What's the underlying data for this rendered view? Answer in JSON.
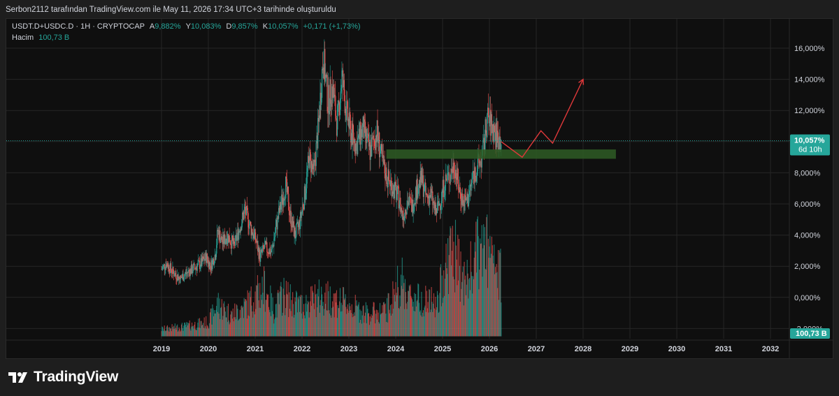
{
  "header": {
    "caption": "Serbon2112 tarafından TradingView.com ile May 11, 2026 17:34 UTC+3 tarihinde oluşturuldu"
  },
  "legend": {
    "symbol": "USDT.D+USDC.D · 1H · CRYPTOCAP",
    "o_label": "A",
    "o_value": "9,882%",
    "h_label": "Y",
    "h_value": "10,083%",
    "l_label": "D",
    "l_value": "9,857%",
    "c_label": "K",
    "c_value": "10,057%",
    "change": "+0,171 (+1,73%)",
    "volume_label": "Hacim",
    "volume_value": "100,73 B"
  },
  "brand": {
    "name": "TradingView",
    "icon": "tradingview-logo-icon"
  },
  "colors": {
    "up": "#26a69a",
    "down": "#ef5350",
    "zone": "#2e5c24",
    "projection": "#e0383a",
    "price_tag": "#26a69a"
  },
  "chart_data": {
    "type": "candlestick",
    "x_axis": {
      "ticks": [
        "2019",
        "2020",
        "2021",
        "2022",
        "2023",
        "2024",
        "2025",
        "2026",
        "2027",
        "2028",
        "2029",
        "2030",
        "2031",
        "2032"
      ]
    },
    "y_axis": {
      "ticks": [
        "16,000%",
        "14,000%",
        "12,000%",
        "10,000%",
        "8,000%",
        "6,000%",
        "4,000%",
        "2,000%",
        "0,000%",
        "-2,000%"
      ],
      "ylim": [
        -2.5,
        17.5
      ]
    },
    "last_price": {
      "label": "10,057%",
      "countdown": "6d 10h",
      "value": 10.057
    },
    "volume_tag": "100,73 B",
    "price_path": [
      [
        2019.0,
        1.8
      ],
      [
        2019.1,
        2.2
      ],
      [
        2019.25,
        1.6
      ],
      [
        2019.4,
        1.2
      ],
      [
        2019.55,
        1.6
      ],
      [
        2019.7,
        1.9
      ],
      [
        2019.85,
        2.2
      ],
      [
        2019.95,
        2.6
      ],
      [
        2020.05,
        2.0
      ],
      [
        2020.15,
        2.8
      ],
      [
        2020.2,
        4.3
      ],
      [
        2020.3,
        3.5
      ],
      [
        2020.4,
        4.0
      ],
      [
        2020.55,
        3.3
      ],
      [
        2020.7,
        4.8
      ],
      [
        2020.78,
        5.6
      ],
      [
        2020.9,
        4.5
      ],
      [
        2021.0,
        3.8
      ],
      [
        2021.1,
        2.6
      ],
      [
        2021.2,
        3.2
      ],
      [
        2021.35,
        2.9
      ],
      [
        2021.45,
        4.6
      ],
      [
        2021.55,
        6.0
      ],
      [
        2021.65,
        7.2
      ],
      [
        2021.75,
        5.2
      ],
      [
        2021.85,
        4.0
      ],
      [
        2021.95,
        4.8
      ],
      [
        2022.05,
        6.5
      ],
      [
        2022.15,
        9.0
      ],
      [
        2022.25,
        8.0
      ],
      [
        2022.35,
        11.0
      ],
      [
        2022.45,
        15.6
      ],
      [
        2022.55,
        12.5
      ],
      [
        2022.65,
        13.5
      ],
      [
        2022.75,
        11.0
      ],
      [
        2022.85,
        14.2
      ],
      [
        2022.95,
        11.8
      ],
      [
        2023.05,
        10.5
      ],
      [
        2023.15,
        9.8
      ],
      [
        2023.3,
        10.8
      ],
      [
        2023.45,
        9.4
      ],
      [
        2023.6,
        10.6
      ],
      [
        2023.7,
        8.8
      ],
      [
        2023.8,
        7.8
      ],
      [
        2023.95,
        7.0
      ],
      [
        2024.05,
        6.5
      ],
      [
        2024.15,
        5.2
      ],
      [
        2024.25,
        6.2
      ],
      [
        2024.35,
        5.9
      ],
      [
        2024.45,
        7.0
      ],
      [
        2024.55,
        7.6
      ],
      [
        2024.65,
        6.4
      ],
      [
        2024.75,
        6.6
      ],
      [
        2024.85,
        5.4
      ],
      [
        2024.95,
        6.2
      ],
      [
        2025.05,
        7.4
      ],
      [
        2025.15,
        7.8
      ],
      [
        2025.25,
        8.6
      ],
      [
        2025.35,
        7.0
      ],
      [
        2025.45,
        6.0
      ],
      [
        2025.55,
        6.4
      ],
      [
        2025.65,
        7.8
      ],
      [
        2025.75,
        8.4
      ],
      [
        2025.85,
        9.0
      ],
      [
        2025.95,
        11.5
      ],
      [
        2026.05,
        11.0
      ],
      [
        2026.15,
        10.4
      ],
      [
        2026.25,
        10.057
      ]
    ],
    "volume_path": [
      [
        2019.0,
        0.5
      ],
      [
        2019.5,
        0.7
      ],
      [
        2020.0,
        1.0
      ],
      [
        2020.2,
        2.3
      ],
      [
        2020.5,
        1.5
      ],
      [
        2020.8,
        2.2
      ],
      [
        2021.0,
        2.8
      ],
      [
        2021.2,
        3.5
      ],
      [
        2021.4,
        1.8
      ],
      [
        2021.6,
        3.0
      ],
      [
        2021.8,
        2.4
      ],
      [
        2022.0,
        2.2
      ],
      [
        2022.4,
        2.8
      ],
      [
        2022.7,
        2.6
      ],
      [
        2023.0,
        2.2
      ],
      [
        2023.4,
        1.6
      ],
      [
        2023.8,
        1.8
      ],
      [
        2024.1,
        4.0
      ],
      [
        2024.3,
        2.8
      ],
      [
        2024.6,
        2.6
      ],
      [
        2024.9,
        2.2
      ],
      [
        2025.0,
        4.4
      ],
      [
        2025.2,
        6.2
      ],
      [
        2025.5,
        3.6
      ],
      [
        2025.7,
        5.6
      ],
      [
        2025.9,
        6.4
      ],
      [
        2026.1,
        4.8
      ],
      [
        2026.25,
        4.2
      ]
    ],
    "annotations": {
      "support_zone": {
        "x_start": 2023.8,
        "x_end": 2028.7,
        "y_low": 8.9,
        "y_high": 9.5
      },
      "projection_path": [
        [
          2026.25,
          10.0
        ],
        [
          2026.7,
          9.0
        ],
        [
          2027.1,
          10.7
        ],
        [
          2027.35,
          9.9
        ],
        [
          2028.0,
          14.0
        ]
      ]
    }
  }
}
